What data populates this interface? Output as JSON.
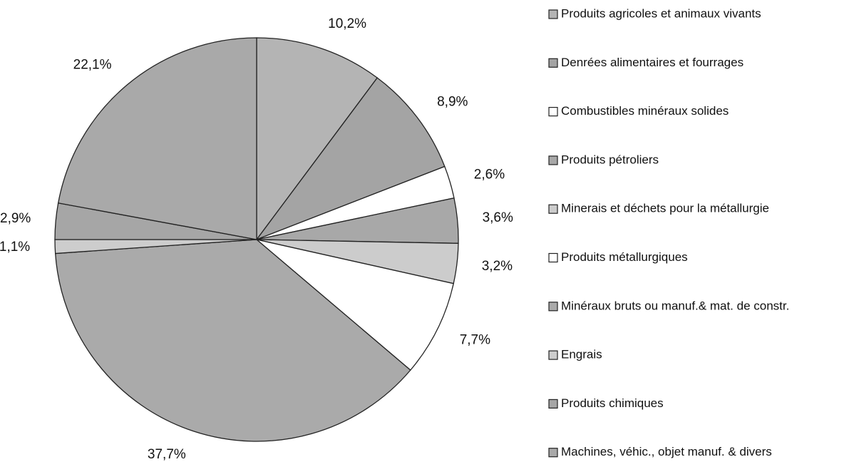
{
  "chart_data": {
    "type": "pie",
    "categories": [
      "Produits agricoles et animaux vivants",
      "Denrées alimentaires et fourrages",
      "Combustibles minéraux solides",
      "Produits pétroliers",
      "Minerais et déchets pour la métallurgie",
      "Produits métallurgiques",
      "Minéraux bruts ou manuf.& mat. de constr.",
      "Engrais",
      "Produits chimiques",
      "Machines, véhic., objet manuf. & divers"
    ],
    "values": [
      10.2,
      8.9,
      2.6,
      3.6,
      3.2,
      7.7,
      37.7,
      1.1,
      2.9,
      22.1
    ],
    "value_labels": [
      "10,2%",
      "8,9%",
      "2,6%",
      "3,6%",
      "3,2%",
      "7,7%",
      "37,7%",
      "1,1%",
      "2,9%",
      "22,1%"
    ],
    "colors": [
      "#b4b4b4",
      "#a4a4a4",
      "#ffffff",
      "#a8a8a8",
      "#cccccc",
      "#ffffff",
      "#aaaaaa",
      "#cdcdcd",
      "#a6a6a6",
      "#a9a9a9"
    ]
  }
}
